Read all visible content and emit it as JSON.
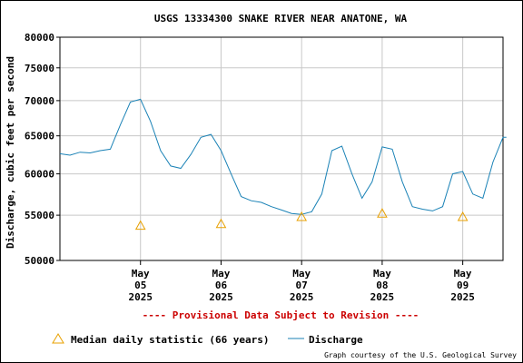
{
  "chart_data": {
    "type": "line",
    "title": "USGS 13334300 SNAKE RIVER NEAR ANATONE, WA",
    "ylabel": "Discharge, cubic feet per second",
    "xlabel": "",
    "y_scale": "log",
    "ylim": [
      50000,
      80000
    ],
    "y_ticks": [
      50000,
      55000,
      60000,
      65000,
      70000,
      75000,
      80000
    ],
    "y_tick_labels": [
      "50000",
      "55000",
      "60000",
      "65000",
      "70000",
      "75000",
      "80000"
    ],
    "xlim": [
      "2025-05-04T00:00",
      "2025-05-09T12:00"
    ],
    "x_ticks": [
      {
        "x": "2025-05-05T00:00",
        "month": "May",
        "day": "05",
        "year": "2025"
      },
      {
        "x": "2025-05-06T00:00",
        "month": "May",
        "day": "06",
        "year": "2025"
      },
      {
        "x": "2025-05-07T00:00",
        "month": "May",
        "day": "07",
        "year": "2025"
      },
      {
        "x": "2025-05-08T00:00",
        "month": "May",
        "day": "08",
        "year": "2025"
      },
      {
        "x": "2025-05-09T00:00",
        "month": "May",
        "day": "09",
        "year": "2025"
      }
    ],
    "grid": true,
    "notice": "---- Provisional Data Subject to Revision ----",
    "credit": "Graph courtesy of the U.S. Geological Survey",
    "colors": {
      "discharge": "#1a82b6",
      "median": "#e8a000",
      "notice": "#cc0000"
    },
    "series": [
      {
        "name": "Discharge",
        "marker": "line",
        "x": [
          "2025-05-04T00:00",
          "2025-05-04T03:00",
          "2025-05-04T06:00",
          "2025-05-04T09:00",
          "2025-05-04T12:00",
          "2025-05-04T15:00",
          "2025-05-04T18:00",
          "2025-05-04T21:00",
          "2025-05-05T00:00",
          "2025-05-05T03:00",
          "2025-05-05T06:00",
          "2025-05-05T09:00",
          "2025-05-05T12:00",
          "2025-05-05T15:00",
          "2025-05-05T18:00",
          "2025-05-05T21:00",
          "2025-05-06T00:00",
          "2025-05-06T03:00",
          "2025-05-06T06:00",
          "2025-05-06T09:00",
          "2025-05-06T12:00",
          "2025-05-06T15:00",
          "2025-05-06T18:00",
          "2025-05-06T21:00",
          "2025-05-07T00:00",
          "2025-05-07T03:00",
          "2025-05-07T06:00",
          "2025-05-07T09:00",
          "2025-05-07T12:00",
          "2025-05-07T15:00",
          "2025-05-07T18:00",
          "2025-05-07T21:00",
          "2025-05-08T00:00",
          "2025-05-08T03:00",
          "2025-05-08T06:00",
          "2025-05-08T09:00",
          "2025-05-08T12:00",
          "2025-05-08T15:00",
          "2025-05-08T18:00",
          "2025-05-08T21:00",
          "2025-05-09T00:00",
          "2025-05-09T03:00",
          "2025-05-09T06:00",
          "2025-05-09T09:00",
          "2025-05-09T12:00",
          "2025-05-09T13:00"
        ],
        "values": [
          62600,
          62400,
          62800,
          62700,
          63000,
          63200,
          66500,
          69800,
          70200,
          67000,
          63000,
          61000,
          60700,
          62500,
          64800,
          65200,
          63000,
          60000,
          57200,
          56700,
          56500,
          56000,
          55600,
          55200,
          55100,
          55400,
          57500,
          63000,
          63600,
          60000,
          57000,
          59000,
          63500,
          63200,
          59000,
          56000,
          55700,
          55500,
          56000,
          60000,
          60300,
          57500,
          57000,
          61500,
          64800,
          64800
        ]
      },
      {
        "name": "Median daily statistic (66 years)",
        "marker": "triangle",
        "x": [
          "2025-05-05T00:00",
          "2025-05-06T00:00",
          "2025-05-07T00:00",
          "2025-05-08T00:00",
          "2025-05-09T00:00"
        ],
        "values": [
          53800,
          54000,
          54800,
          55200,
          54800
        ]
      }
    ]
  }
}
